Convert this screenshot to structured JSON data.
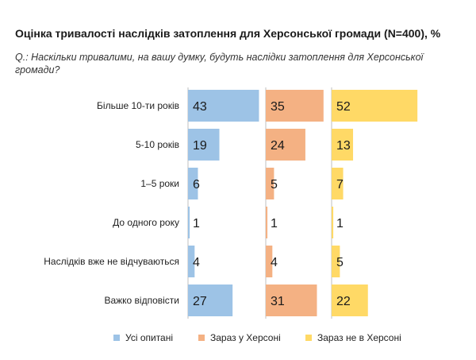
{
  "title": "Оцінка тривалості наслідків затоплення для Херсонської громади (N=400), %",
  "question": "Q.: Наскільки тривалими, на вашу думку, будуть наслідки затоплення для Херсонської громади?",
  "colors": {
    "all": "#9dc3e6",
    "in_kherson": "#f4b183",
    "not_in_kherson": "#ffd966",
    "axis": "#bfbfbf"
  },
  "chart_data": {
    "type": "bar",
    "orientation": "horizontal",
    "categories": [
      "Більше 10-ти років",
      "5-10 років",
      "1–5 роки",
      "До одного року",
      "Наслідків вже не відчуваються",
      "Важко відповісти"
    ],
    "series": [
      {
        "name": "Усі опитані",
        "values": [
          43,
          19,
          6,
          1,
          4,
          27
        ]
      },
      {
        "name": "Зараз у Херсоні",
        "values": [
          35,
          24,
          5,
          1,
          4,
          31
        ]
      },
      {
        "name": "Зараз не в Херсоні",
        "values": [
          52,
          13,
          7,
          1,
          5,
          22
        ]
      }
    ],
    "legend_position": "bottom",
    "grid": false
  }
}
